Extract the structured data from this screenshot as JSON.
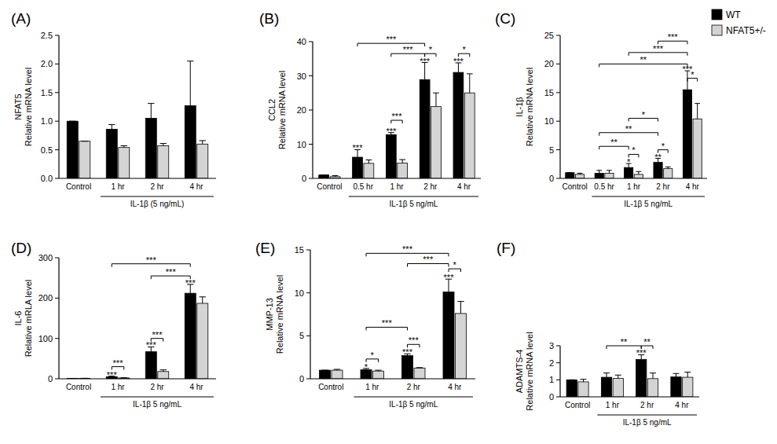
{
  "chart_data": [
    {
      "type": "bar",
      "title": "(A)",
      "ylabel": [
        "NFAT5",
        "Relative mRNA level"
      ],
      "xlabel": "IL-1β (5 ng/mL)",
      "categories": [
        "Control",
        "1 hr",
        "2 hr",
        "4 hr"
      ],
      "series": [
        {
          "name": "WT",
          "color": "#000000",
          "values": [
            1.0,
            0.86,
            1.05,
            1.27
          ],
          "errors": [
            0,
            0.08,
            0.26,
            0.78
          ]
        },
        {
          "name": "NFAT5+/-",
          "color": "#d4d4d4",
          "values": [
            0.65,
            0.54,
            0.57,
            0.6
          ],
          "errors": [
            0,
            0.03,
            0.04,
            0.06
          ]
        }
      ],
      "ylim": [
        0,
        2.5
      ],
      "yticks": [
        {
          "value": 0,
          "label": "0.0"
        },
        0.5,
        {
          "value": 1,
          "label": "1.0"
        },
        1.5,
        {
          "value": 2,
          "label": "2.0"
        },
        2.5
      ],
      "grid": false
    },
    {
      "type": "bar",
      "title": "(B)",
      "ylabel": [
        "CCL2",
        "Relative mRNA level"
      ],
      "xlabel": "IL-1β 5 ng/mL",
      "categories": [
        "Control",
        "0.5 hr",
        "1 hr",
        "2 hr",
        "4 hr"
      ],
      "series": [
        {
          "name": "WT",
          "color": "#000000",
          "values": [
            1,
            6.2,
            12.8,
            28.9,
            31
          ],
          "errors": [
            0,
            2.2,
            0.6,
            5.0,
            2.8
          ],
          "significance": [
            null,
            "***",
            "***",
            "***",
            "***"
          ]
        },
        {
          "name": "NFAT5+/-",
          "color": "#d4d4d4",
          "values": [
            0.5,
            4.4,
            4.5,
            21,
            25
          ],
          "errors": [
            0.3,
            1.0,
            1.0,
            4.0,
            5.6
          ]
        }
      ],
      "brackets": [
        {
          "from": [
            "0.5 hr",
            "WT"
          ],
          "to": [
            "2 hr",
            "WT"
          ],
          "y": 39.5,
          "label": "***"
        },
        {
          "from": [
            "1 hr",
            "WT"
          ],
          "to": [
            "2 hr",
            "WT"
          ],
          "y": 36.5,
          "label": "***"
        },
        {
          "from": [
            "1 hr",
            "WT"
          ],
          "to": [
            "1 hr",
            "NFAT5+/-"
          ],
          "y": 17,
          "label": "***"
        },
        {
          "from": [
            "2 hr",
            "WT"
          ],
          "to": [
            "2 hr",
            "NFAT5+/-"
          ],
          "y": 36.5,
          "label": "*"
        },
        {
          "from": [
            "4 hr",
            "WT"
          ],
          "to": [
            "4 hr",
            "NFAT5+/-"
          ],
          "y": 36.5,
          "label": "*"
        }
      ],
      "ylim": [
        0,
        40
      ],
      "yticks": [
        0,
        10,
        20,
        30,
        40
      ],
      "grid": false
    },
    {
      "type": "bar",
      "title": "(C)",
      "ylabel": [
        "IL-1β",
        "Relative mRNA level"
      ],
      "xlabel": "IL-1β 5 ng/mL",
      "categories": [
        "Control",
        "0.5 hr",
        "1 hr",
        "2 hr",
        "4 hr"
      ],
      "series": [
        {
          "name": "WT",
          "color": "#000000",
          "values": [
            1,
            0.9,
            1.9,
            2.8,
            15.5
          ],
          "errors": [
            0,
            0.5,
            0.7,
            0.7,
            3.3
          ],
          "significance": [
            null,
            null,
            "*",
            "**",
            "***"
          ]
        },
        {
          "name": "NFAT5+/-",
          "color": "#d4d4d4",
          "values": [
            0.7,
            0.9,
            0.7,
            1.7,
            10.4
          ],
          "errors": [
            0.2,
            0.5,
            0.5,
            0.3,
            2.7
          ]
        }
      ],
      "brackets": [
        {
          "from": [
            "1 hr",
            "WT"
          ],
          "to": [
            "1 hr",
            "NFAT5+/-"
          ],
          "y": 4.2,
          "label": "*"
        },
        {
          "from": [
            "0.5 hr",
            "WT"
          ],
          "to": [
            "1 hr",
            "WT"
          ],
          "y": 5.6,
          "label": "**"
        },
        {
          "from": [
            "2 hr",
            "WT"
          ],
          "to": [
            "2 hr",
            "NFAT5+/-"
          ],
          "y": 5.0,
          "label": "*"
        },
        {
          "from": [
            "0.5 hr",
            "WT"
          ],
          "to": [
            "2 hr",
            "WT"
          ],
          "y": 8.0,
          "label": "**"
        },
        {
          "from": [
            "1 hr",
            "WT"
          ],
          "to": [
            "2 hr",
            "WT"
          ],
          "y": 10.5,
          "label": "*"
        },
        {
          "from": [
            "0.5 hr",
            "WT"
          ],
          "to": [
            "4 hr",
            "WT"
          ],
          "y": 20.0,
          "label": "**"
        },
        {
          "from": [
            "1 hr",
            "WT"
          ],
          "to": [
            "4 hr",
            "WT"
          ],
          "y": 22.0,
          "label": "***"
        },
        {
          "from": [
            "2 hr",
            "WT"
          ],
          "to": [
            "4 hr",
            "WT"
          ],
          "y": 24.0,
          "label": "***"
        },
        {
          "from": [
            "4 hr",
            "WT"
          ],
          "to": [
            "4 hr",
            "NFAT5+/-"
          ],
          "y": 17.5,
          "label": "*"
        }
      ],
      "ylim": [
        0,
        25
      ],
      "yticks": [
        0,
        5,
        10,
        15,
        20,
        25
      ],
      "grid": false,
      "legend": "top-right"
    },
    {
      "type": "bar",
      "title": "(D)",
      "ylabel": [
        "IL-6",
        "Relative mRLA level"
      ],
      "xlabel": "IL-1β 5 ng/mL",
      "categories": [
        "Control",
        "1 hr",
        "2 hr",
        "4 hr"
      ],
      "series": [
        {
          "name": "WT",
          "color": "#000000",
          "values": [
            1,
            5,
            67,
            212
          ],
          "errors": [
            0,
            1.5,
            12,
            22
          ],
          "significance": [
            null,
            "***",
            "***",
            "***"
          ]
        },
        {
          "name": "NFAT5+/-",
          "color": "#d4d4d4",
          "values": [
            1,
            2,
            18,
            187
          ],
          "errors": [
            0.3,
            0.5,
            4,
            16
          ]
        }
      ],
      "brackets": [
        {
          "from": [
            "1 hr",
            "WT"
          ],
          "to": [
            "1 hr",
            "NFAT5+/-"
          ],
          "y": 30,
          "label": "***"
        },
        {
          "from": [
            "2 hr",
            "WT"
          ],
          "to": [
            "2 hr",
            "NFAT5+/-"
          ],
          "y": 100,
          "label": "***"
        },
        {
          "from": [
            "2 hr",
            "WT"
          ],
          "to": [
            "4 hr",
            "WT"
          ],
          "y": 255,
          "label": "***"
        },
        {
          "from": [
            "1 hr",
            "WT"
          ],
          "to": [
            "4 hr",
            "WT"
          ],
          "y": 285,
          "label": "***"
        }
      ],
      "ylim": [
        0,
        300
      ],
      "yticks": [
        0,
        100,
        200,
        300
      ],
      "grid": false
    },
    {
      "type": "bar",
      "title": "(E)",
      "ylabel": [
        "MMP-13",
        "Relative mRNA level"
      ],
      "xlabel": "IL-1β 5 ng/mL",
      "categories": [
        "Control",
        "1 hr",
        "2 hr",
        "4 hr"
      ],
      "series": [
        {
          "name": "WT",
          "color": "#000000",
          "values": [
            1,
            1.05,
            2.7,
            10.1
          ],
          "errors": [
            0,
            0.15,
            0.2,
            1.5
          ],
          "significance": [
            null,
            "*",
            "***",
            "***"
          ]
        },
        {
          "name": "NFAT5+/-",
          "color": "#d4d4d4",
          "values": [
            1.0,
            0.9,
            1.25,
            7.6
          ],
          "errors": [
            0.1,
            0.1,
            0.05,
            1.4
          ]
        }
      ],
      "brackets": [
        {
          "from": [
            "1 hr",
            "WT"
          ],
          "to": [
            "1 hr",
            "NFAT5+/-"
          ],
          "y": 2.3,
          "label": "*"
        },
        {
          "from": [
            "2 hr",
            "WT"
          ],
          "to": [
            "2 hr",
            "NFAT5+/-"
          ],
          "y": 4.0,
          "label": "***"
        },
        {
          "from": [
            "1 hr",
            "WT"
          ],
          "to": [
            "2 hr",
            "WT"
          ],
          "y": 6.0,
          "label": "***"
        },
        {
          "from": [
            "4 hr",
            "WT"
          ],
          "to": [
            "4 hr",
            "NFAT5+/-"
          ],
          "y": 12.8,
          "label": "*"
        },
        {
          "from": [
            "2 hr",
            "WT"
          ],
          "to": [
            "4 hr",
            "WT"
          ],
          "y": 13.4,
          "label": "***"
        },
        {
          "from": [
            "1 hr",
            "WT"
          ],
          "to": [
            "4 hr",
            "WT"
          ],
          "y": 14.6,
          "label": "***"
        }
      ],
      "ylim": [
        0,
        15
      ],
      "yticks": [
        0,
        5,
        10,
        15
      ],
      "grid": false
    },
    {
      "type": "bar",
      "title": "(F)",
      "ylabel": [
        "ADAMTS-4",
        "Relative mRNA level"
      ],
      "xlabel": "IL-1β 5 ng/mL",
      "categories": [
        "Control",
        "1 hr",
        "2 hr",
        "4 hr"
      ],
      "series": [
        {
          "name": "WT",
          "color": "#000000",
          "values": [
            1,
            1.15,
            2.2,
            1.17
          ],
          "errors": [
            0,
            0.25,
            0.27,
            0.2
          ],
          "significance": [
            null,
            null,
            "***",
            null
          ]
        },
        {
          "name": "NFAT5+/-",
          "color": "#d4d4d4",
          "values": [
            0.88,
            1.08,
            1.07,
            1.15
          ],
          "errors": [
            0.15,
            0.2,
            0.33,
            0.3
          ]
        }
      ],
      "brackets": [
        {
          "from": [
            "1 hr",
            "WT"
          ],
          "to": [
            "2 hr",
            "WT"
          ],
          "y": 3.0,
          "label": "**"
        },
        {
          "from": [
            "2 hr",
            "WT"
          ],
          "to": [
            "2 hr",
            "NFAT5+/-"
          ],
          "y": 3.0,
          "label": "**"
        }
      ],
      "ylim": [
        0,
        3
      ],
      "yticks": [
        0,
        1,
        2,
        3
      ],
      "grid": false
    }
  ]
}
